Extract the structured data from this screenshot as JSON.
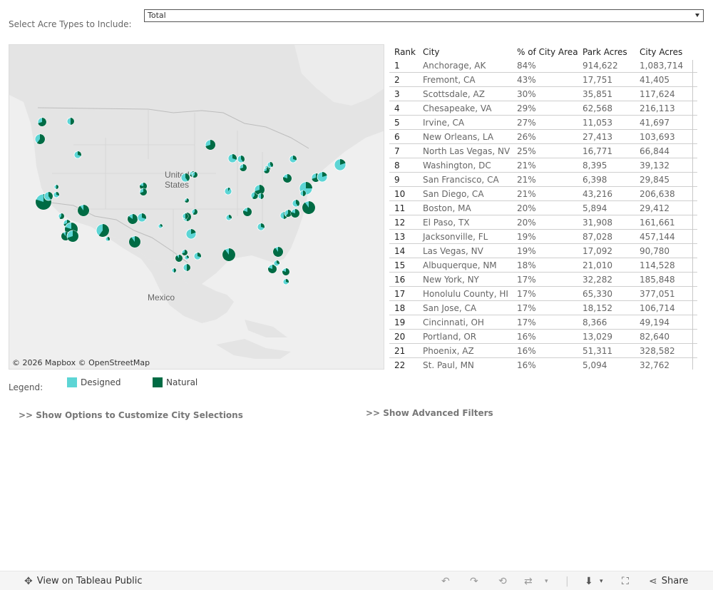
{
  "filter": {
    "label": "Select Acre Types to Include:",
    "selected": "Total"
  },
  "map": {
    "attribution": "© 2026 Mapbox  © OpenStreetMap",
    "labels": {
      "us": [
        "United",
        "States"
      ],
      "mexico": "Mexico"
    }
  },
  "table": {
    "headers": {
      "rank": "Rank",
      "city": "City",
      "pct": "% of City Area",
      "park": "Park Acres",
      "acres": "City Acres"
    },
    "rows": [
      {
        "rank": "1",
        "city": "Anchorage, AK",
        "pct": "84%",
        "park": "914,622",
        "acres": "1,083,714"
      },
      {
        "rank": "2",
        "city": "Fremont, CA",
        "pct": "43%",
        "park": "17,751",
        "acres": "41,405"
      },
      {
        "rank": "3",
        "city": "Scottsdale, AZ",
        "pct": "30%",
        "park": "35,851",
        "acres": "117,624"
      },
      {
        "rank": "4",
        "city": "Chesapeake, VA",
        "pct": "29%",
        "park": "62,568",
        "acres": "216,113"
      },
      {
        "rank": "5",
        "city": "Irvine, CA",
        "pct": "27%",
        "park": "11,053",
        "acres": "41,697"
      },
      {
        "rank": "6",
        "city": "New Orleans, LA",
        "pct": "26%",
        "park": "27,413",
        "acres": "103,693"
      },
      {
        "rank": "7",
        "city": "North Las Vegas, NV",
        "pct": "25%",
        "park": "16,771",
        "acres": "66,844"
      },
      {
        "rank": "8",
        "city": "Washington, DC",
        "pct": "21%",
        "park": "8,395",
        "acres": "39,132"
      },
      {
        "rank": "9",
        "city": "San Francisco, CA",
        "pct": "21%",
        "park": "6,398",
        "acres": "29,845"
      },
      {
        "rank": "10",
        "city": "San Diego, CA",
        "pct": "21%",
        "park": "43,216",
        "acres": "206,638"
      },
      {
        "rank": "11",
        "city": "Boston, MA",
        "pct": "20%",
        "park": "5,894",
        "acres": "29,412"
      },
      {
        "rank": "12",
        "city": "El Paso, TX",
        "pct": "20%",
        "park": "31,908",
        "acres": "161,661"
      },
      {
        "rank": "13",
        "city": "Jacksonville, FL",
        "pct": "19%",
        "park": "87,028",
        "acres": "457,144"
      },
      {
        "rank": "14",
        "city": "Las Vegas, NV",
        "pct": "19%",
        "park": "17,092",
        "acres": "90,780"
      },
      {
        "rank": "15",
        "city": "Albuquerque, NM",
        "pct": "18%",
        "park": "21,010",
        "acres": "114,528"
      },
      {
        "rank": "16",
        "city": "New York, NY",
        "pct": "17%",
        "park": "32,282",
        "acres": "185,848"
      },
      {
        "rank": "17",
        "city": "Honolulu County, HI",
        "pct": "17%",
        "park": "65,330",
        "acres": "377,051"
      },
      {
        "rank": "18",
        "city": "San Jose, CA",
        "pct": "17%",
        "park": "18,152",
        "acres": "106,714"
      },
      {
        "rank": "19",
        "city": "Cincinnati, OH",
        "pct": "17%",
        "park": "8,366",
        "acres": "49,194"
      },
      {
        "rank": "20",
        "city": "Portland, OR",
        "pct": "16%",
        "park": "13,029",
        "acres": "82,640"
      },
      {
        "rank": "21",
        "city": "Phoenix, AZ",
        "pct": "16%",
        "park": "51,311",
        "acres": "328,582"
      },
      {
        "rank": "22",
        "city": "St. Paul, MN",
        "pct": "16%",
        "park": "5,094",
        "acres": "32,762"
      }
    ]
  },
  "legend": {
    "label": "Legend:",
    "items": [
      {
        "label": "Designed",
        "color": "#5dd5d5"
      },
      {
        "label": "Natural",
        "color": "#006b44"
      }
    ]
  },
  "links": {
    "customize": ">> Show Options to Customize City Selections",
    "advanced": ">> Show Advanced Filters"
  },
  "toolbar": {
    "view_label": "View on Tableau Public",
    "share_label": "Share"
  },
  "colors": {
    "designed": "#5dd5d5",
    "natural": "#006b44",
    "map_bg": "#efefef",
    "land": "#e4e4e4"
  }
}
